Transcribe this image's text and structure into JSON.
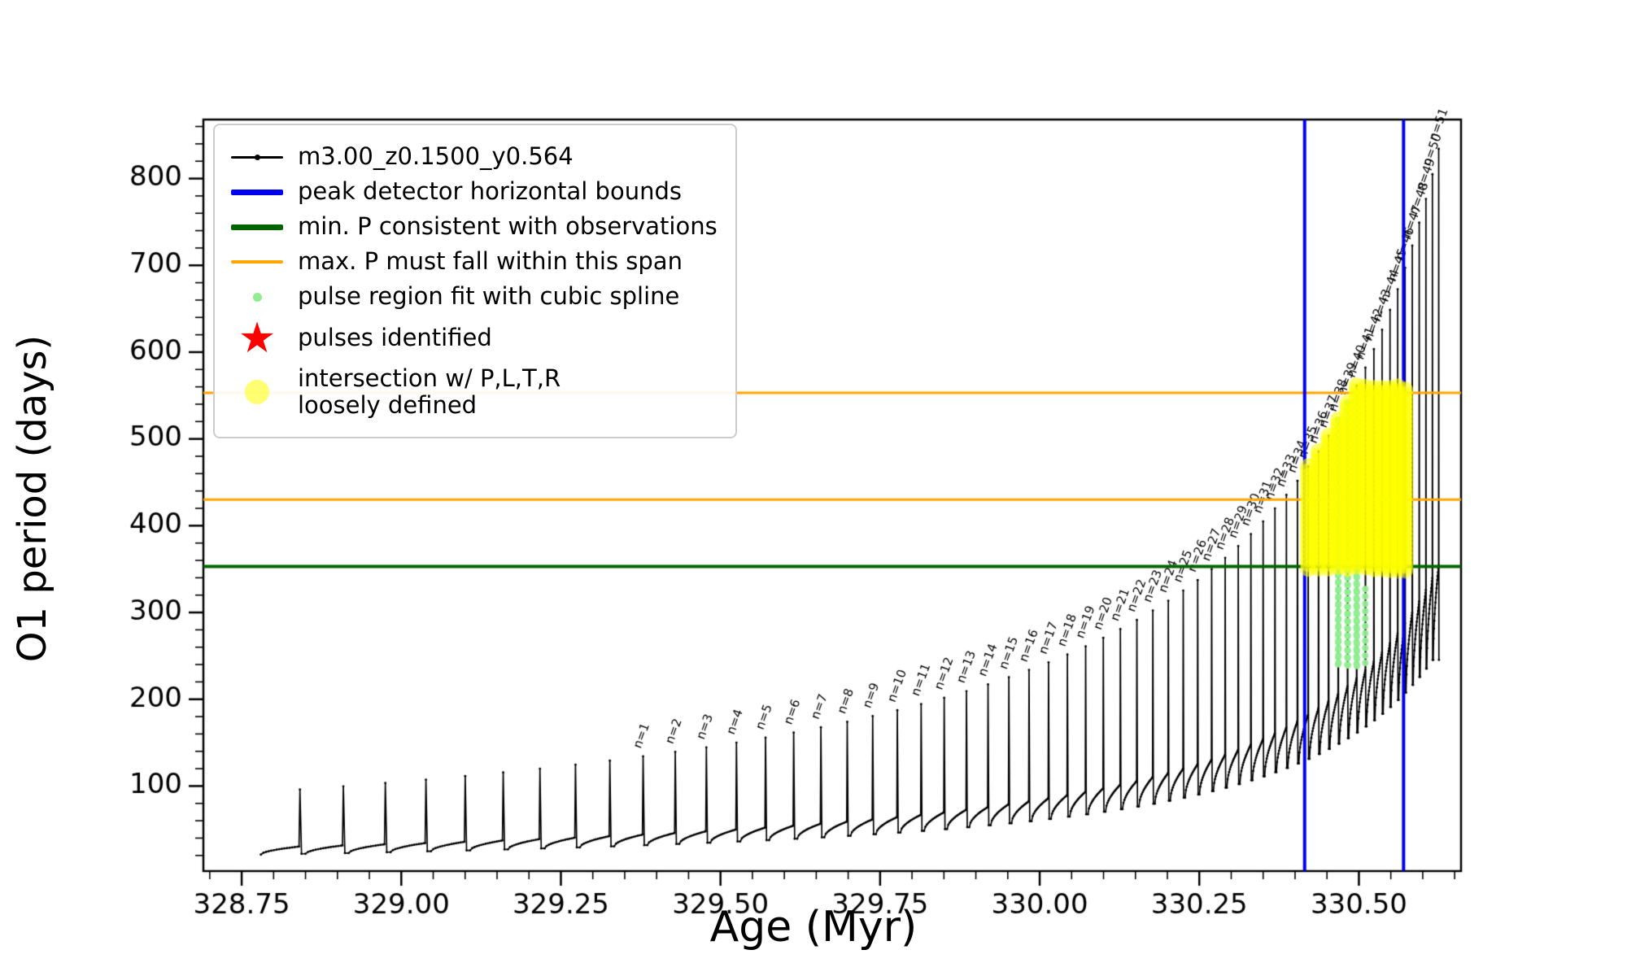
{
  "figure": {
    "background": "#ffffff"
  },
  "axis_labels": {
    "x": "Age (Myr)",
    "y": "O1 period (days)"
  },
  "legend": {
    "items": [
      {
        "label": "m3.00_z0.1500_y0.564",
        "marker": "line-dot",
        "color": "#000000"
      },
      {
        "label": "peak detector horizontal bounds",
        "marker": "thick-line",
        "color": "#0000ee"
      },
      {
        "label": "min. P consistent with observations",
        "marker": "thick-line",
        "color": "#006400"
      },
      {
        "label": "max. P must fall within this span",
        "marker": "line",
        "color": "#ffa500"
      },
      {
        "label": "pulse region fit with cubic spline",
        "marker": "small-dot",
        "color": "#90ee90"
      },
      {
        "label": "pulses identified",
        "marker": "star",
        "color": "#ff0000"
      },
      {
        "label": "intersection w/ P,L,T,R\nloosely defined",
        "marker": "big-dot",
        "color": "#ffff00"
      }
    ]
  },
  "chart_data": {
    "type": "line",
    "title": "",
    "xlabel": "Age (Myr)",
    "ylabel": "O1 period (days)",
    "xlim": [
      328.69,
      330.66
    ],
    "ylim": [
      2,
      868
    ],
    "xticks": [
      328.75,
      329.0,
      329.25,
      329.5,
      329.75,
      330.0,
      330.25,
      330.5
    ],
    "xtick_labels": [
      "328.75",
      "329.00",
      "329.25",
      "329.50",
      "329.75",
      "330.00",
      "330.25",
      "330.50"
    ],
    "yticks": [
      100,
      200,
      300,
      400,
      500,
      600,
      700,
      800
    ],
    "ytick_labels": [
      "100",
      "200",
      "300",
      "400",
      "500",
      "600",
      "700",
      "800"
    ],
    "x_minor_step": 0.05,
    "y_minor_step": 20,
    "grid": false,
    "legend_position": "upper-left",
    "series_label": "m3.00_z0.1500_y0.564",
    "series_color": "#000000",
    "vlines": {
      "label": "peak detector horizontal bounds",
      "color": "#0000ee",
      "x": [
        330.415,
        330.57
      ],
      "width": 4
    },
    "hline_min_P": {
      "label": "min. P consistent with observations",
      "color": "#006400",
      "y": 353,
      "width": 4
    },
    "hlines_max_P_span": {
      "label": "max. P must fall within this span",
      "color": "#ffa500",
      "y": [
        553,
        430
      ],
      "width": 3
    },
    "pulse_model": {
      "comment": "thermally-pulsing sawtooth track: pulse k at age_k, interpulse dt shrinks, baseline and peak period grow",
      "count": 60,
      "start_age": 328.78,
      "interpulse0_Myr": 0.07,
      "interpulse_decay": 30,
      "base_period0_days": 30,
      "base_growth": 24,
      "peak_ratio_first": 3.2,
      "peak_ratio_last": 2.38,
      "dip_fraction": 0.7,
      "label_start_index": 9,
      "label_prefix": "n=",
      "label_max_n": 51
    },
    "spline_region": {
      "label": "pulse region fit with cubic spline",
      "color": "#90ee90",
      "x_range": [
        330.465,
        330.51
      ],
      "y_range": [
        235,
        560
      ]
    },
    "intersection_region": {
      "label": "intersection w/ P,L,T,R loosely defined",
      "color": "#ffff00",
      "x_range": [
        330.415,
        330.575
      ],
      "y_range": [
        348,
        562
      ]
    },
    "pulses_identified": {
      "label": "pulses identified",
      "color": "#ff0000",
      "marker": "star",
      "points": []
    }
  }
}
